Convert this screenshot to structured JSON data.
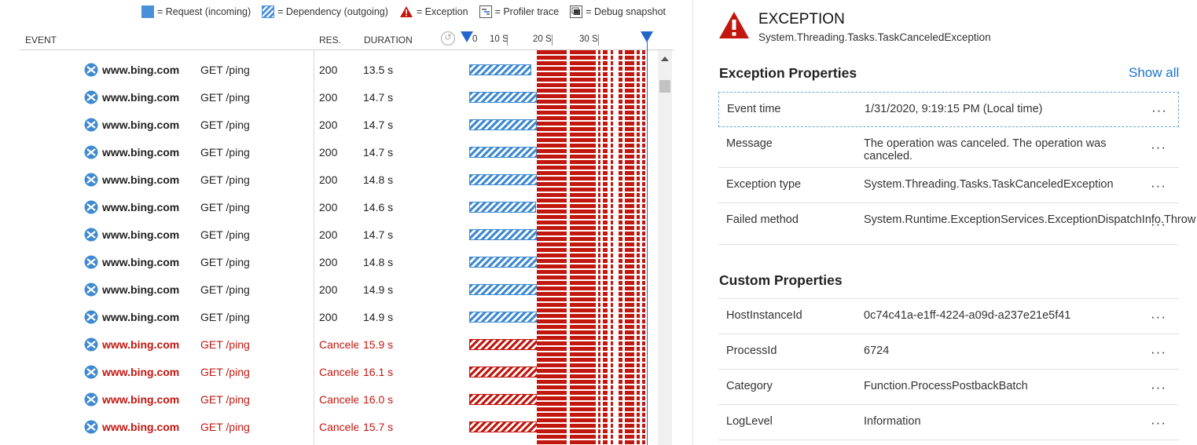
{
  "legend": {
    "request": "= Request (incoming)",
    "dependency": "= Dependency (outgoing)",
    "exception": "= Exception",
    "profiler": "= Profiler trace",
    "debug": "= Debug snapshot"
  },
  "colors": {
    "request_blue": "#3f8ad0",
    "failure_red": "#c1170f",
    "link_blue": "#1a73d1",
    "marker_blue": "#2266cc"
  },
  "table": {
    "headers": {
      "event": "EVENT",
      "res": "RES.",
      "duration": "DURATION"
    },
    "ticks": [
      "0",
      "10 S",
      "20 S",
      "30 S"
    ],
    "rows": [
      {
        "host": "www.bing.com",
        "method": "GET /ping",
        "res": "200",
        "duration": "13.5 s",
        "seconds": 13.5,
        "failed": false
      },
      {
        "host": "www.bing.com",
        "method": "GET /ping",
        "res": "200",
        "duration": "14.7 s",
        "seconds": 14.7,
        "failed": false
      },
      {
        "host": "www.bing.com",
        "method": "GET /ping",
        "res": "200",
        "duration": "14.7 s",
        "seconds": 14.7,
        "failed": false
      },
      {
        "host": "www.bing.com",
        "method": "GET /ping",
        "res": "200",
        "duration": "14.7 s",
        "seconds": 14.7,
        "failed": false
      },
      {
        "host": "www.bing.com",
        "method": "GET /ping",
        "res": "200",
        "duration": "14.8 s",
        "seconds": 14.8,
        "failed": false
      },
      {
        "host": "www.bing.com",
        "method": "GET /ping",
        "res": "200",
        "duration": "14.6 s",
        "seconds": 14.6,
        "failed": false
      },
      {
        "host": "www.bing.com",
        "method": "GET /ping",
        "res": "200",
        "duration": "14.7 s",
        "seconds": 14.7,
        "failed": false
      },
      {
        "host": "www.bing.com",
        "method": "GET /ping",
        "res": "200",
        "duration": "14.8 s",
        "seconds": 14.8,
        "failed": false
      },
      {
        "host": "www.bing.com",
        "method": "GET /ping",
        "res": "200",
        "duration": "14.9 s",
        "seconds": 14.9,
        "failed": false
      },
      {
        "host": "www.bing.com",
        "method": "GET /ping",
        "res": "200",
        "duration": "14.9 s",
        "seconds": 14.9,
        "failed": false
      },
      {
        "host": "www.bing.com",
        "method": "GET /ping",
        "res": "Cancele",
        "duration": "15.9 s",
        "seconds": 15.9,
        "failed": true
      },
      {
        "host": "www.bing.com",
        "method": "GET /ping",
        "res": "Cancele",
        "duration": "16.1 s",
        "seconds": 16.1,
        "failed": true
      },
      {
        "host": "www.bing.com",
        "method": "GET /ping",
        "res": "Cancele",
        "duration": "16.0 s",
        "seconds": 16.0,
        "failed": true
      },
      {
        "host": "www.bing.com",
        "method": "GET /ping",
        "res": "Cancele",
        "duration": "15.7 s",
        "seconds": 15.7,
        "failed": true
      }
    ]
  },
  "exception": {
    "title": "EXCEPTION",
    "type": "System.Threading.Tasks.TaskCanceledException"
  },
  "exception_properties": {
    "title": "Exception Properties",
    "show_all": "Show all",
    "rows": [
      {
        "key": "Event time",
        "value": "1/31/2020, 9:19:15 PM (Local time)"
      },
      {
        "key": "Message",
        "value": "The operation was canceled. The operation was canceled."
      },
      {
        "key": "Exception type",
        "value": "System.Threading.Tasks.TaskCanceledException"
      },
      {
        "key": "Failed method",
        "value": "System.Runtime.ExceptionServices.ExceptionDispatchInfo.Throw"
      }
    ]
  },
  "custom_properties": {
    "title": "Custom Properties",
    "rows": [
      {
        "key": "HostInstanceId",
        "value": "0c74c41a-e1ff-4224-a09d-a237e21e5f41"
      },
      {
        "key": "ProcessId",
        "value": "6724"
      },
      {
        "key": "Category",
        "value": "Function.ProcessPostbackBatch"
      },
      {
        "key": "LogLevel",
        "value": "Information"
      }
    ]
  },
  "more_glyph": "···"
}
